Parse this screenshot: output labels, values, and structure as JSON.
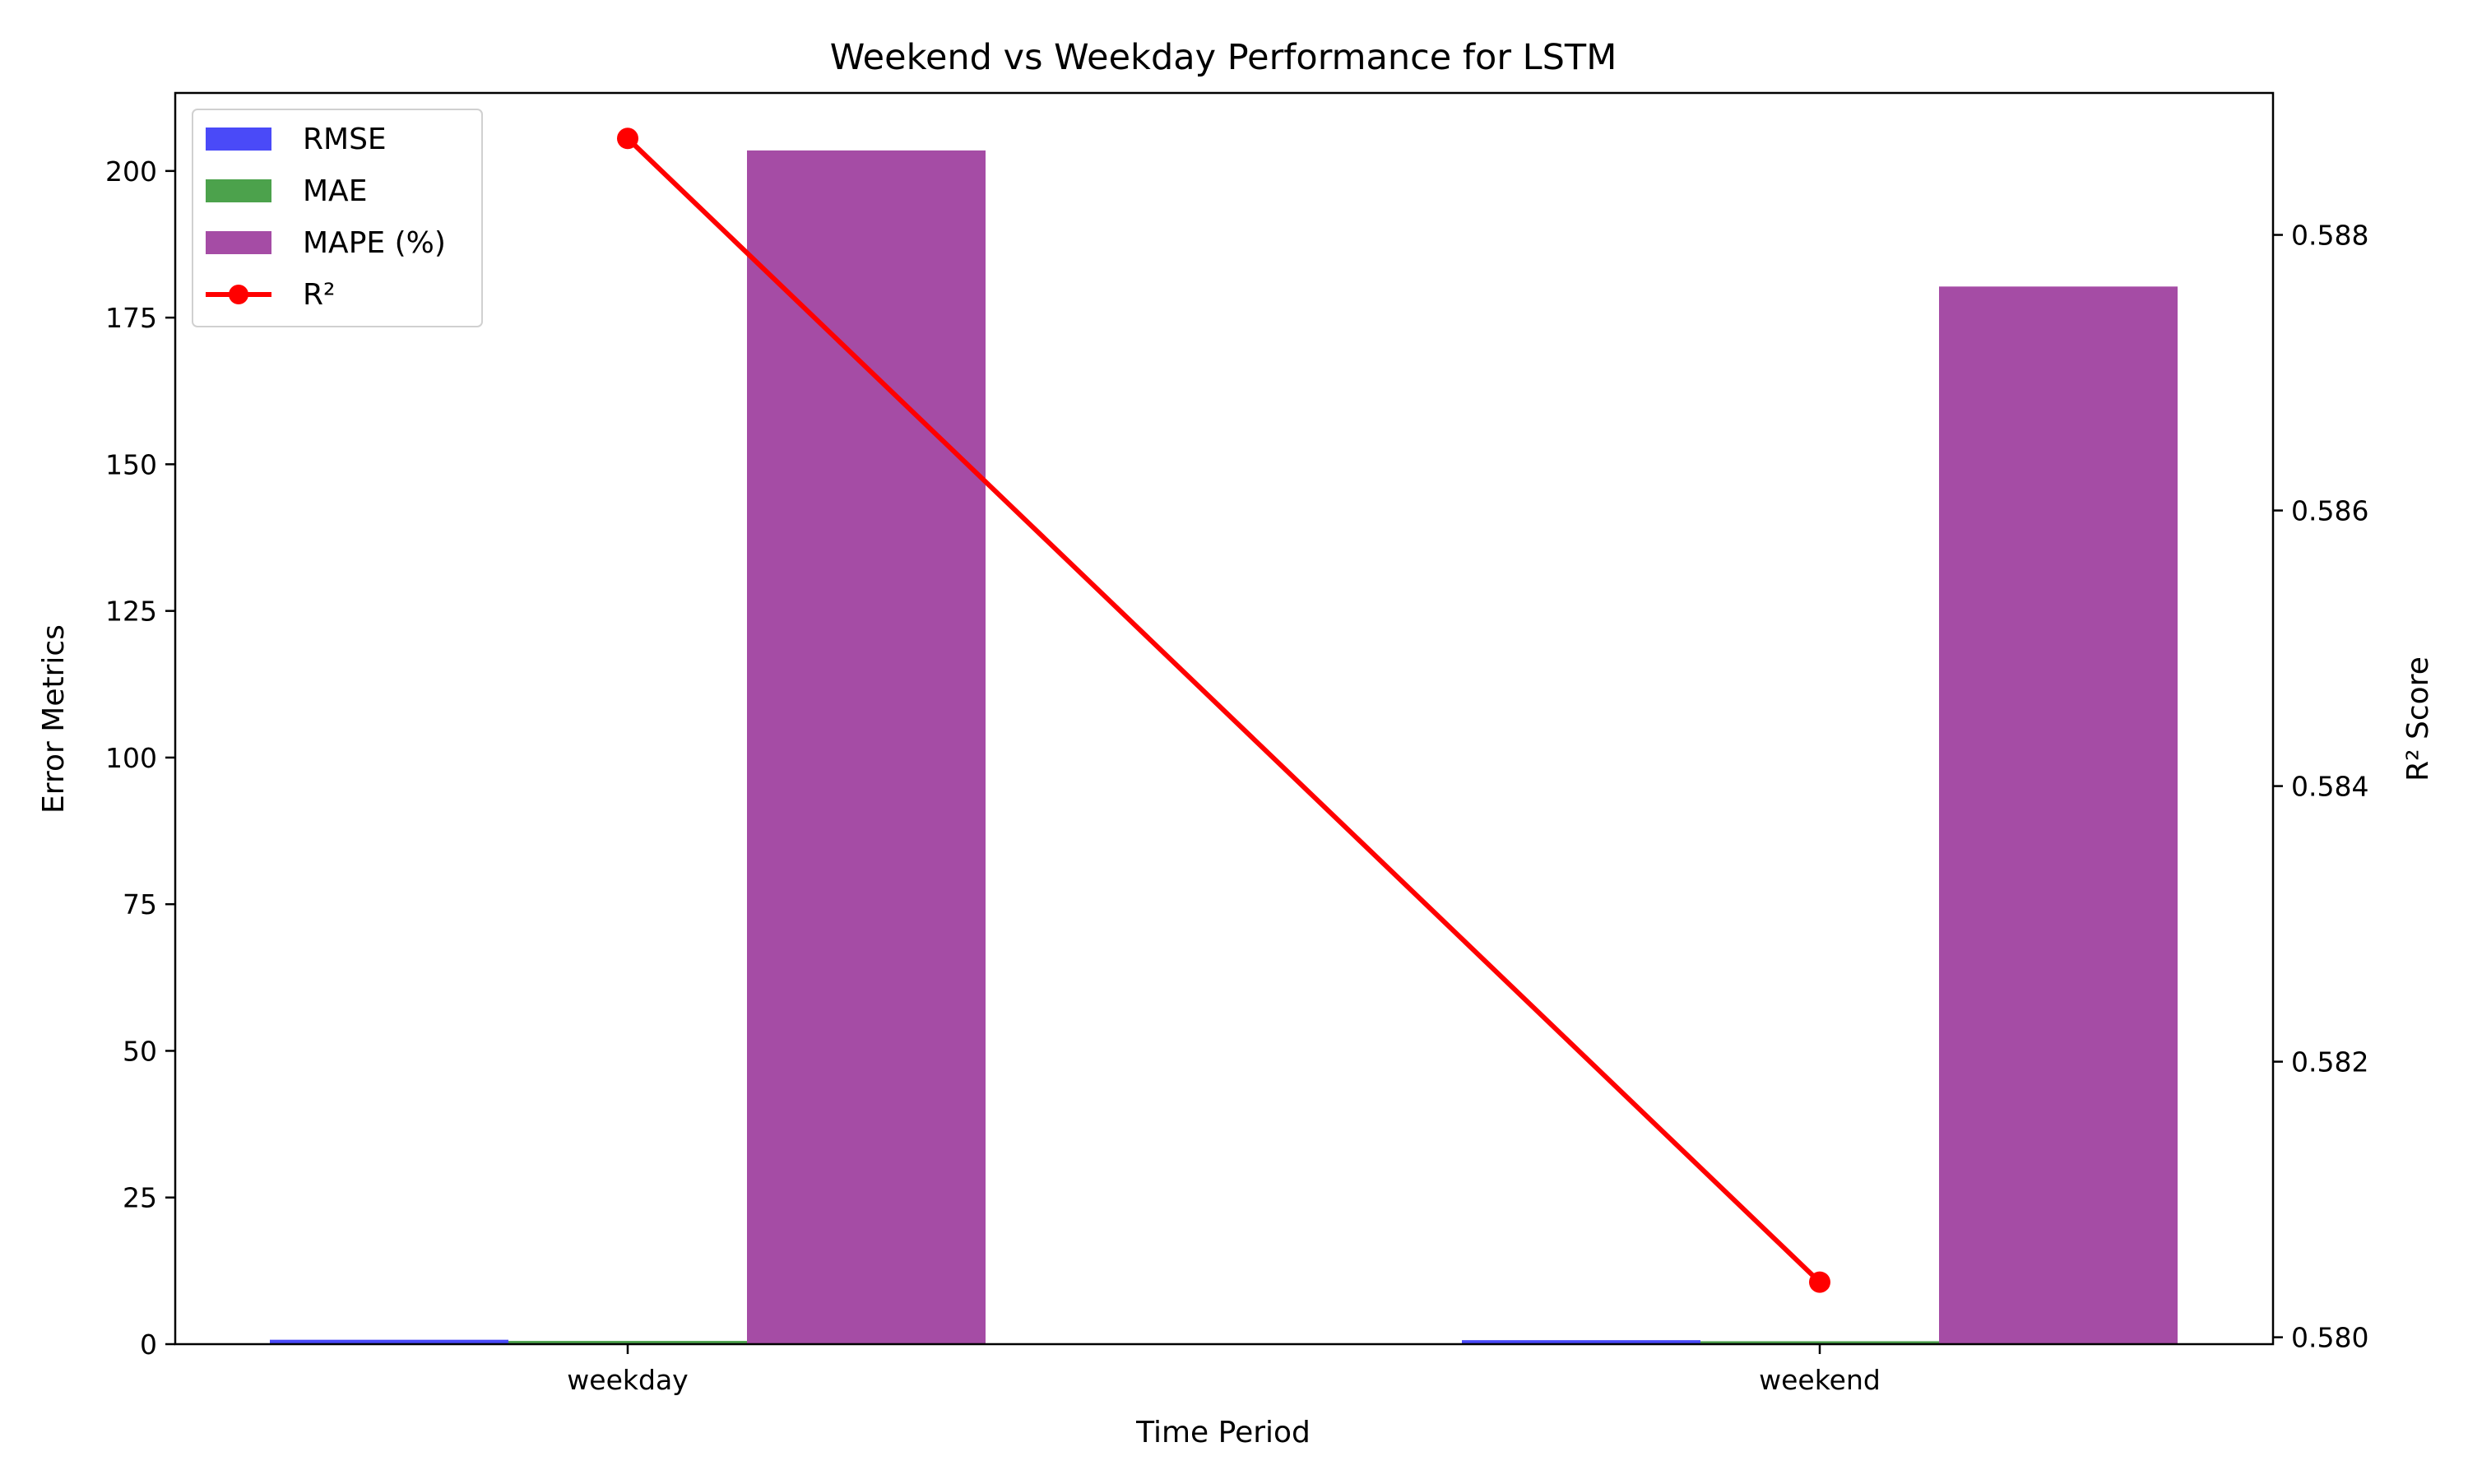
{
  "chart_data": {
    "type": "bar",
    "title": "Weekend vs Weekday Performance for LSTM",
    "xlabel": "Time Period",
    "ylabel": "Error Metrics",
    "y2label": "R² Score",
    "categories": [
      "weekday",
      "weekend"
    ],
    "ylim": [
      0,
      213.3
    ],
    "y2lim": [
      0.57995,
      0.58903
    ],
    "yticks": [
      0,
      25,
      50,
      75,
      100,
      125,
      150,
      175,
      200
    ],
    "y2ticks": [
      0.58,
      0.582,
      0.584,
      0.586,
      0.588
    ],
    "grid": false,
    "legend_position": "top-left",
    "series": [
      {
        "name": "RMSE",
        "values": [
          0.75,
          0.68
        ],
        "color": "#4a4af8",
        "kind": "bar",
        "axis": "left"
      },
      {
        "name": "MAE",
        "values": [
          0.55,
          0.5
        ],
        "color": "#4ca24c",
        "kind": "bar",
        "axis": "left"
      },
      {
        "name": "MAPE (%)",
        "values": [
          203.5,
          180.3
        ],
        "color": "#a54ca5",
        "kind": "bar",
        "axis": "left"
      },
      {
        "name": "R²",
        "values": [
          0.5887,
          0.5804
        ],
        "color": "#ff0000",
        "kind": "line",
        "axis": "right"
      }
    ]
  }
}
